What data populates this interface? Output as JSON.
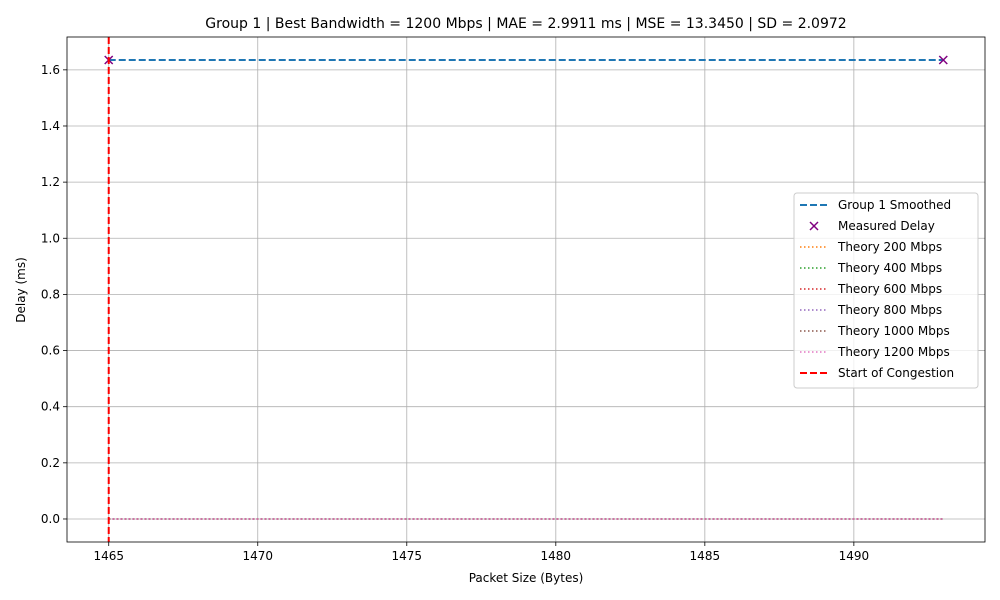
{
  "chart_data": {
    "type": "line",
    "title": "Group 1 | Best Bandwidth = 1200 Mbps | MAE = 2.9911 ms | MSE = 13.3450 | SD = 2.0972",
    "xlabel": "Packet Size (Bytes)",
    "ylabel": "Delay (ms)",
    "xlim": [
      1463.6,
      1494.4
    ],
    "ylim": [
      -0.082,
      1.717
    ],
    "xticks": [
      1465,
      1470,
      1475,
      1480,
      1485,
      1490
    ],
    "yticks": [
      0.0,
      0.2,
      0.4,
      0.6,
      0.8,
      1.0,
      1.2,
      1.4,
      1.6
    ],
    "grid": true,
    "legend_position": "center-right",
    "series": [
      {
        "name": "Group 1 Smoothed",
        "kind": "line",
        "style": "dashed",
        "color": "#1f77b4",
        "x": [
          1465,
          1493
        ],
        "y": [
          1.635,
          1.635
        ]
      },
      {
        "name": "Measured Delay",
        "kind": "scatter",
        "marker": "x",
        "color": "#800080",
        "x": [
          1465,
          1493
        ],
        "y": [
          1.635,
          1.635
        ]
      },
      {
        "name": "Theory 200 Mbps",
        "kind": "line",
        "style": "dotted",
        "color": "#ff7f0e",
        "x": [
          1465,
          1493
        ],
        "y": [
          0.0,
          0.0
        ]
      },
      {
        "name": "Theory 400 Mbps",
        "kind": "line",
        "style": "dotted",
        "color": "#2ca02c",
        "x": [
          1465,
          1493
        ],
        "y": [
          0.0,
          0.0
        ]
      },
      {
        "name": "Theory 600 Mbps",
        "kind": "line",
        "style": "dotted",
        "color": "#d62728",
        "x": [
          1465,
          1493
        ],
        "y": [
          0.0,
          0.0
        ]
      },
      {
        "name": "Theory 800 Mbps",
        "kind": "line",
        "style": "dotted",
        "color": "#9467bd",
        "x": [
          1465,
          1493
        ],
        "y": [
          0.0,
          0.0
        ]
      },
      {
        "name": "Theory 1000 Mbps",
        "kind": "line",
        "style": "dotted",
        "color": "#8c564b",
        "x": [
          1465,
          1493
        ],
        "y": [
          0.0,
          0.0
        ]
      },
      {
        "name": "Theory 1200 Mbps",
        "kind": "line",
        "style": "dotted",
        "color": "#e377c2",
        "x": [
          1465,
          1493
        ],
        "y": [
          0.0,
          0.0
        ]
      },
      {
        "name": "Start of Congestion",
        "kind": "vline",
        "style": "dashed",
        "color": "#ff0000",
        "x": 1465
      }
    ]
  }
}
